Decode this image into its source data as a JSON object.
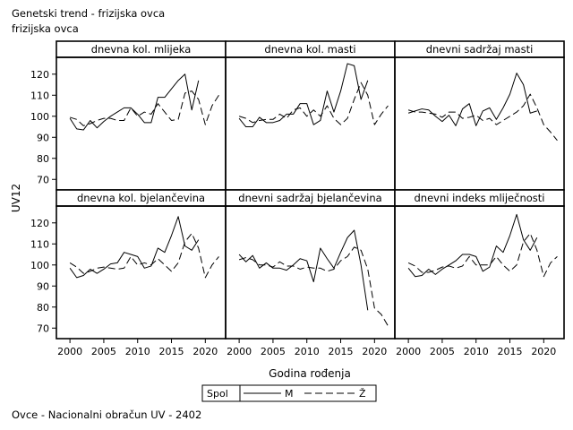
{
  "header": {
    "title": "Genetski trend - frizijska ovca",
    "subtitle": "frizijska ovca"
  },
  "footnote": "Ovce - Nacionalni obračun UV - 2402",
  "legend": {
    "title": "Spol",
    "items": [
      "M",
      "Ž"
    ]
  },
  "colors": {
    "line": "#000000",
    "frame": "#000000"
  },
  "chart_data": {
    "type": "line",
    "layout": "small-multiples 3x2",
    "xlabel": "Godina rođenja",
    "ylabel": "UV12",
    "xlim": [
      1998,
      2023
    ],
    "ylim": [
      65,
      128
    ],
    "xticks": [
      2000,
      2005,
      2010,
      2015,
      2020
    ],
    "yticks": [
      70,
      80,
      90,
      100,
      110,
      120
    ],
    "grid": false,
    "legend_position": "bottom",
    "panels": [
      {
        "title": "dnevna kol. mlijeka",
        "series": [
          {
            "name": "M",
            "style": "solid",
            "x": [
              2000,
              2001,
              2002,
              2003,
              2004,
              2005,
              2006,
              2007,
              2008,
              2009,
              2010,
              2011,
              2012,
              2013,
              2014,
              2015,
              2016,
              2017,
              2018,
              2019
            ],
            "y": [
              99,
              94,
              93.5,
              98,
              94.5,
              97.5,
              100,
              102,
              104,
              104,
              101,
              97,
              97,
              109,
              109,
              113,
              117,
              120,
              103,
              117
            ]
          },
          {
            "name": "Ž",
            "style": "dashed",
            "x": [
              2000,
              2001,
              2002,
              2003,
              2004,
              2005,
              2006,
              2007,
              2008,
              2009,
              2010,
              2011,
              2012,
              2013,
              2014,
              2015,
              2016,
              2017,
              2018,
              2019,
              2020,
              2021,
              2022
            ],
            "y": [
              99.5,
              98.5,
              95.5,
              96.5,
              98,
              99,
              99,
              98,
              98,
              104,
              100,
              102,
              101,
              106,
              102,
              98,
              98.5,
              111,
              112,
              108,
              96,
              105,
              110
            ]
          }
        ]
      },
      {
        "title": "dnevna kol. masti",
        "series": [
          {
            "name": "M",
            "style": "solid",
            "x": [
              2000,
              2001,
              2002,
              2003,
              2004,
              2005,
              2006,
              2007,
              2008,
              2009,
              2010,
              2011,
              2012,
              2013,
              2014,
              2015,
              2016,
              2017,
              2018,
              2019
            ],
            "y": [
              99,
              95,
              95,
              99.5,
              97,
              97,
              98,
              101,
              101,
              106,
              106,
              96,
              98,
              112,
              102,
              112,
              125,
              124,
              108,
              117
            ]
          },
          {
            "name": "Ž",
            "style": "dashed",
            "x": [
              2000,
              2001,
              2002,
              2003,
              2004,
              2005,
              2006,
              2007,
              2008,
              2009,
              2010,
              2011,
              2012,
              2013,
              2014,
              2015,
              2016,
              2017,
              2018,
              2019,
              2020,
              2021,
              2022
            ],
            "y": [
              100,
              99,
              97,
              98,
              98.5,
              98.5,
              101,
              99,
              103,
              104,
              100,
              103,
              100,
              105,
              99,
              96,
              99,
              108,
              116,
              110,
              96,
              101,
              105
            ]
          }
        ]
      },
      {
        "title": "dnevni sadržaj masti",
        "series": [
          {
            "name": "M",
            "style": "solid",
            "x": [
              2000,
              2001,
              2002,
              2003,
              2004,
              2005,
              2006,
              2007,
              2008,
              2009,
              2010,
              2011,
              2012,
              2013,
              2014,
              2015,
              2016,
              2017,
              2018,
              2019
            ],
            "y": [
              101.5,
              102.5,
              103.5,
              103,
              100,
              97.5,
              100.5,
              95.5,
              103.5,
              106,
              95.5,
              102.5,
              104,
              98.5,
              104,
              110.5,
              120.5,
              115,
              101.5,
              102.5
            ]
          },
          {
            "name": "Ž",
            "style": "dashed",
            "x": [
              2000,
              2001,
              2002,
              2003,
              2004,
              2005,
              2006,
              2007,
              2008,
              2009,
              2010,
              2011,
              2012,
              2013,
              2014,
              2015,
              2016,
              2017,
              2018,
              2019,
              2020,
              2021,
              2022
            ],
            "y": [
              103,
              102,
              102,
              101.5,
              101,
              99.5,
              102,
              102,
              99,
              99.5,
              100.5,
              98,
              99,
              96,
              98,
              100,
              102,
              105,
              110.5,
              104,
              96,
              92.5,
              88.5
            ]
          }
        ]
      },
      {
        "title": "dnevna kol. bjelančevina",
        "series": [
          {
            "name": "M",
            "style": "solid",
            "x": [
              2000,
              2001,
              2002,
              2003,
              2004,
              2005,
              2006,
              2007,
              2008,
              2009,
              2010,
              2011,
              2012,
              2013,
              2014,
              2015,
              2016,
              2017,
              2018,
              2019
            ],
            "y": [
              98.5,
              94,
              95,
              98,
              96,
              98,
              100.5,
              101,
              106,
              105,
              104,
              98.5,
              99.5,
              108,
              106,
              114,
              123,
              109,
              107,
              112
            ]
          },
          {
            "name": "Ž",
            "style": "dashed",
            "x": [
              2000,
              2001,
              2002,
              2003,
              2004,
              2005,
              2006,
              2007,
              2008,
              2009,
              2010,
              2011,
              2012,
              2013,
              2014,
              2015,
              2016,
              2017,
              2018,
              2019,
              2020,
              2021,
              2022
            ],
            "y": [
              101,
              99,
              96,
              97,
              98.5,
              99,
              98.5,
              98,
              98.5,
              104,
              100,
              101,
              100,
              103,
              100,
              97,
              101,
              111,
              115,
              108,
              94,
              100,
              104
            ]
          }
        ]
      },
      {
        "title": "dnevni sadržaj bjelančevina",
        "series": [
          {
            "name": "M",
            "style": "solid",
            "x": [
              2000,
              2001,
              2002,
              2003,
              2004,
              2005,
              2006,
              2007,
              2008,
              2009,
              2010,
              2011,
              2012,
              2013,
              2014,
              2015,
              2016,
              2017,
              2018,
              2019
            ],
            "y": [
              105,
              101.5,
              104.5,
              98.5,
              101,
              98.5,
              98.5,
              97.5,
              100,
              103,
              102,
              92,
              108,
              103,
              98.5,
              106,
              113,
              116.5,
              100,
              78.5
            ]
          },
          {
            "name": "Ž",
            "style": "dashed",
            "x": [
              2000,
              2001,
              2002,
              2003,
              2004,
              2005,
              2006,
              2007,
              2008,
              2009,
              2010,
              2011,
              2012,
              2013,
              2014,
              2015,
              2016,
              2017,
              2018,
              2019,
              2020,
              2021,
              2022
            ],
            "y": [
              102.5,
              103.5,
              102.5,
              100,
              100,
              99,
              101.5,
              99.5,
              99.5,
              98,
              99,
              98.5,
              98.5,
              97,
              98,
              102,
              104,
              108.5,
              107,
              98,
              79.5,
              76.5,
              71
            ]
          }
        ]
      },
      {
        "title": "dnevni indeks mliječnosti",
        "series": [
          {
            "name": "M",
            "style": "solid",
            "x": [
              2000,
              2001,
              2002,
              2003,
              2004,
              2005,
              2006,
              2007,
              2008,
              2009,
              2010,
              2011,
              2012,
              2013,
              2014,
              2015,
              2016,
              2017,
              2018,
              2019
            ],
            "y": [
              98.5,
              94.5,
              95,
              98,
              95.5,
              98,
              100,
              102,
              105,
              105,
              104,
              97,
              99,
              109,
              106,
              114,
              124,
              112,
              107,
              113
            ]
          },
          {
            "name": "Ž",
            "style": "dashed",
            "x": [
              2000,
              2001,
              2002,
              2003,
              2004,
              2005,
              2006,
              2007,
              2008,
              2009,
              2010,
              2011,
              2012,
              2013,
              2014,
              2015,
              2016,
              2017,
              2018,
              2019,
              2020,
              2021,
              2022
            ],
            "y": [
              101,
              99.5,
              96.5,
              96.5,
              97.5,
              99,
              99.5,
              98.5,
              99.5,
              104,
              100,
              100,
              100,
              104,
              100,
              97,
              100,
              111,
              115,
              107,
              94.5,
              101,
              104
            ]
          }
        ]
      }
    ]
  }
}
